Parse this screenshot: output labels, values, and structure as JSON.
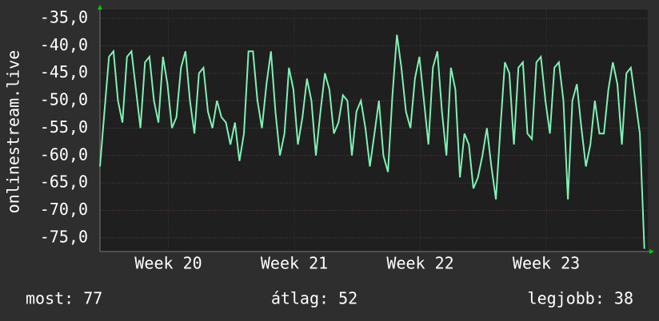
{
  "chart_data": {
    "type": "line",
    "y_label": "onlinestream.live",
    "xlim": [
      0,
      30.44
    ],
    "ylim": [
      -77.5,
      -33.4
    ],
    "xticks": [
      {
        "value": 3.8,
        "label": "Week 20"
      },
      {
        "value": 10.8,
        "label": "Week 21"
      },
      {
        "value": 17.8,
        "label": "Week 22"
      },
      {
        "value": 24.8,
        "label": "Week 23"
      }
    ],
    "yticks": [
      {
        "value": -35,
        "label": "-35,0"
      },
      {
        "value": -40,
        "label": "-40,0"
      },
      {
        "value": -45,
        "label": "-45,0"
      },
      {
        "value": -50,
        "label": "-50,0"
      },
      {
        "value": -55,
        "label": "-55,0"
      },
      {
        "value": -60,
        "label": "-60,0"
      },
      {
        "value": -65,
        "label": "-65,0"
      },
      {
        "value": -70,
        "label": "-70,0"
      },
      {
        "value": -75,
        "label": "-75,0"
      }
    ],
    "grid": true,
    "x": [
      0,
      0.25,
      0.5,
      0.75,
      1,
      1.25,
      1.5,
      1.75,
      2,
      2.25,
      2.5,
      2.75,
      3,
      3.25,
      3.5,
      3.75,
      4,
      4.25,
      4.5,
      4.75,
      5,
      5.25,
      5.5,
      5.75,
      6,
      6.25,
      6.5,
      6.75,
      7,
      7.25,
      7.5,
      7.75,
      8,
      8.25,
      8.5,
      8.75,
      9,
      9.25,
      9.5,
      9.75,
      10,
      10.25,
      10.5,
      10.75,
      11,
      11.25,
      11.5,
      11.75,
      12,
      12.25,
      12.5,
      12.75,
      13,
      13.25,
      13.5,
      13.75,
      14,
      14.25,
      14.5,
      14.75,
      15,
      15.25,
      15.5,
      15.75,
      16,
      16.25,
      16.5,
      16.75,
      17,
      17.25,
      17.5,
      17.75,
      18,
      18.25,
      18.5,
      18.75,
      19,
      19.25,
      19.5,
      19.75,
      20,
      20.25,
      20.5,
      20.75,
      21,
      21.25,
      21.5,
      21.75,
      22,
      22.25,
      22.5,
      22.75,
      23,
      23.25,
      23.5,
      23.75,
      24,
      24.25,
      24.5,
      24.75,
      25,
      25.25,
      25.5,
      25.75,
      26,
      26.25,
      26.5,
      26.75,
      27,
      27.25,
      27.5,
      27.75,
      28,
      28.25,
      28.5,
      28.75,
      29,
      29.25,
      29.5,
      29.75,
      30,
      30.25
    ],
    "series": [
      {
        "name": "onlinestream.live",
        "color": "#7ff0b4",
        "values": [
          -62,
          -52,
          -42,
          -41,
          -50,
          -54,
          -42,
          -41,
          -48,
          -55,
          -43,
          -42,
          -50,
          -54,
          -42,
          -47,
          -55,
          -53,
          -44,
          -41,
          -50,
          -56,
          -45,
          -44,
          -52,
          -55,
          -50,
          -53,
          -54,
          -58,
          -54,
          -61,
          -56,
          -41,
          -41,
          -50,
          -55,
          -47,
          -41,
          -52,
          -60,
          -56,
          -44,
          -48,
          -58,
          -53,
          -46,
          -50,
          -60,
          -52,
          -45,
          -48,
          -56,
          -54,
          -49,
          -50,
          -60,
          -52,
          -50,
          -55,
          -62,
          -56,
          -50,
          -60,
          -63,
          -49,
          -38,
          -44,
          -52,
          -55,
          -46,
          -42,
          -50,
          -58,
          -44,
          -41,
          -52,
          -60,
          -44,
          -48,
          -64,
          -56,
          -58,
          -66,
          -64,
          -60,
          -55,
          -62,
          -68,
          -55,
          -43,
          -45,
          -58,
          -44,
          -43,
          -56,
          -57,
          -43,
          -42,
          -50,
          -56,
          -44,
          -43,
          -50,
          -68,
          -50,
          -47,
          -55,
          -62,
          -58,
          -50,
          -56,
          -56,
          -48,
          -43,
          -47,
          -58,
          -45,
          -44,
          -50,
          -56,
          -77
        ]
      }
    ],
    "footer": [
      "most: 77",
      "átlag: 52",
      "legjobb: 38"
    ]
  }
}
